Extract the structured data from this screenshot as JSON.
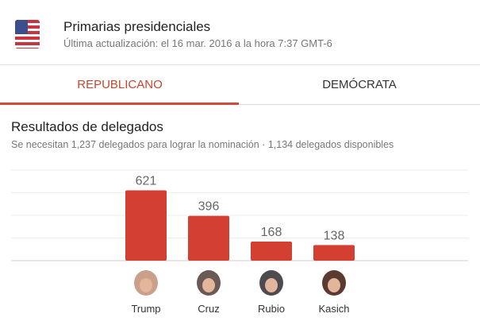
{
  "header": {
    "icon": "us-flag-icon",
    "title": "Primarias presidenciales",
    "updated": "Última actualización: el 16 mar. 2016 a la hora 7:37 GMT-6"
  },
  "tabs": [
    {
      "label": "REPUBLICANO",
      "active": true
    },
    {
      "label": "DEMÓCRATA",
      "active": false
    }
  ],
  "section": {
    "title": "Resultados de delegados",
    "subtitle": "Se necesitan 1,237 delegados para lograr la nominación · 1,134 delegados disponibles"
  },
  "colors": {
    "accent": "#d34836",
    "bar": "#d33f31"
  },
  "chart_data": {
    "type": "bar",
    "categories": [
      "Trump",
      "Cruz",
      "Rubio",
      "Kasich"
    ],
    "values": [
      621,
      396,
      168,
      138
    ],
    "ylim": [
      0,
      800
    ],
    "grid": true,
    "data_labels": true
  }
}
